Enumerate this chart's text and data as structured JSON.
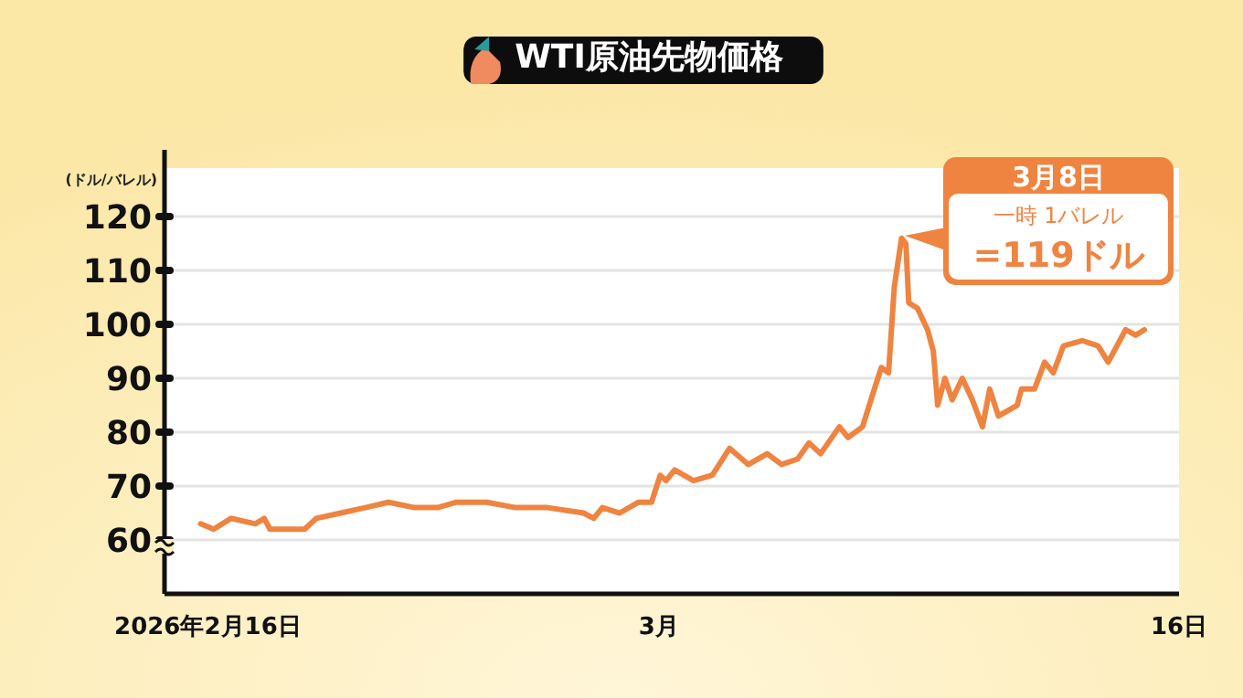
{
  "chart_data": {
    "type": "line",
    "title": "WTI原油先物価格",
    "ylabel": "(ドル/バレル)",
    "x": [
      "2026-02-15T19:00",
      "2026-02-16T04:00",
      "2026-02-16T16:00",
      "2026-02-17T09:00",
      "2026-02-17T15:00",
      "2026-02-17T19:00",
      "2026-02-18T19:00",
      "2026-02-19T03:00",
      "2026-02-19T20:00",
      "2026-02-20T13:00",
      "2026-02-21T05:00",
      "2026-02-21T23:00",
      "2026-02-22T15:00",
      "2026-02-23T04:00",
      "2026-02-24T01:00",
      "2026-02-24T21:00",
      "2026-02-25T19:00",
      "2026-02-26T20:00",
      "2026-02-27T03:00",
      "2026-02-27T09:00",
      "2026-02-27T21:00",
      "2026-02-28T10:00",
      "2026-02-28T19:00",
      "2026-03-01T01:00",
      "2026-03-01T05:00",
      "2026-03-01T11:00",
      "2026-03-02T00:00",
      "2026-03-02T13:00",
      "2026-03-03T01:00",
      "2026-03-03T14:00",
      "2026-03-04T03:00",
      "2026-03-04T13:00",
      "2026-03-05T00:00",
      "2026-03-05T08:00",
      "2026-03-05T16:00",
      "2026-03-06T05:00",
      "2026-03-06T11:00",
      "2026-03-06T21:00",
      "2026-03-07T04:00",
      "2026-03-07T10:00",
      "2026-03-07T15:00",
      "2026-03-07T19:00",
      "2026-03-08T00:00",
      "2026-03-08T03:00",
      "2026-03-08T05:00",
      "2026-03-08T11:00",
      "2026-03-08T18:00",
      "2026-03-08T22:00",
      "2026-03-09T01:00",
      "2026-03-09T06:00",
      "2026-03-09T11:00",
      "2026-03-09T18:00",
      "2026-03-10T01:00",
      "2026-03-10T08:00",
      "2026-03-10T13:00",
      "2026-03-10T19:00",
      "2026-03-11T08:00",
      "2026-03-11T11:00",
      "2026-03-11T20:00",
      "2026-03-12T03:00",
      "2026-03-12T09:00",
      "2026-03-12T16:00",
      "2026-03-13T05:00",
      "2026-03-13T16:00",
      "2026-03-13T23:00",
      "2026-03-14T11:00",
      "2026-03-14T18:00",
      "2026-03-15T00:00"
    ],
    "series": [
      {
        "color": "#ef8440",
        "values": [
          63,
          62,
          64,
          63,
          64,
          62,
          62,
          64,
          65,
          66,
          67,
          66,
          66,
          67,
          67,
          66,
          66,
          65,
          64,
          66,
          65,
          67,
          67,
          72,
          71,
          73,
          71,
          72,
          77,
          74,
          76,
          74,
          75,
          78,
          76,
          81,
          79,
          81,
          87,
          92,
          91,
          107,
          116,
          115,
          104,
          103,
          99,
          95,
          85,
          90,
          86,
          90,
          86,
          81,
          88,
          83,
          85,
          88,
          88,
          93,
          91,
          96,
          97,
          96,
          93,
          99,
          98,
          99
        ]
      }
    ],
    "xlim": [
      "2026-02-14T18:00",
      "2026-03-16"
    ],
    "xticks": [
      {
        "value": "2026-02-16",
        "label": "2026年2月16日"
      },
      {
        "value": "2026-03-01",
        "label": "3月"
      },
      {
        "value": "2026-03-16",
        "label": "16日"
      }
    ],
    "ylim": [
      50,
      129
    ],
    "yticks": [
      60,
      70,
      80,
      90,
      100,
      110,
      120
    ],
    "grid": "y",
    "marker": "none",
    "line_style": "solid",
    "annotations": [
      "3月8日",
      "一時 1バレル",
      "=119ドル"
    ]
  }
}
